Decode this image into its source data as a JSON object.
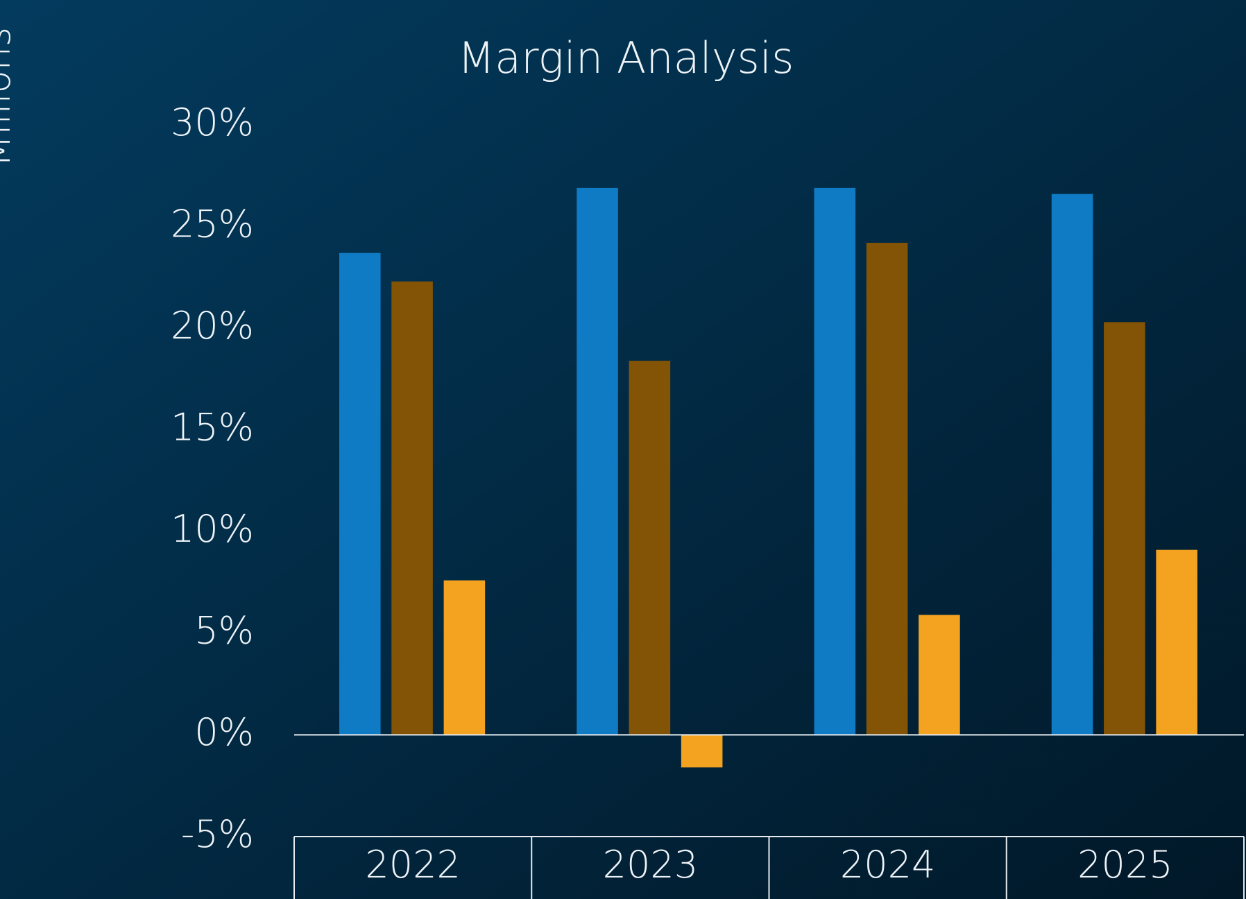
{
  "chart_data": {
    "type": "bar",
    "title": "Margin Analysis",
    "y_axis_label": "Millions",
    "categories": [
      "2022",
      "2023",
      "2024",
      "2025"
    ],
    "series": [
      {
        "color": "#0e7bc4",
        "values": [
          23.7,
          26.9,
          26.9,
          26.6
        ]
      },
      {
        "color": "#835406",
        "values": [
          22.3,
          18.4,
          24.2,
          20.3
        ]
      },
      {
        "color": "#f4a321",
        "values": [
          7.6,
          -1.6,
          5.9,
          9.1
        ]
      }
    ],
    "ylim": [
      -5,
      30
    ],
    "yticks": [
      {
        "value": -5,
        "label": "-5%"
      },
      {
        "value": 0,
        "label": "0%"
      },
      {
        "value": 5,
        "label": "5%"
      },
      {
        "value": 10,
        "label": "10%"
      },
      {
        "value": 15,
        "label": "15%"
      },
      {
        "value": 20,
        "label": "20%"
      },
      {
        "value": 25,
        "label": "25%"
      },
      {
        "value": 30,
        "label": "30%"
      }
    ],
    "grid": false
  }
}
